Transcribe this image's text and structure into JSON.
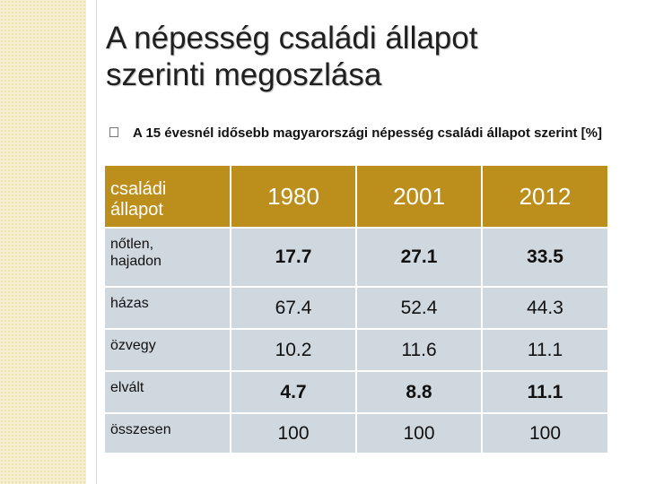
{
  "slide": {
    "title_line1": "A népesség családi állapot",
    "title_line2": "szerinti megoszlása",
    "bullet": "A 15 évesnél idősebb magyarországi népesség családi állapot szerint [%]"
  },
  "table": {
    "header": {
      "label_line1": "családi",
      "label_line2": "állapot",
      "years": [
        "1980",
        "2001",
        "2012"
      ]
    },
    "rows": [
      {
        "label_line1": "nőtlen,",
        "label_line2": "hajadon",
        "values": [
          "17.7",
          "27.1",
          "33.5"
        ],
        "bold": true
      },
      {
        "label_line1": "házas",
        "label_line2": "",
        "values": [
          "67.4",
          "52.4",
          "44.3"
        ],
        "bold": false
      },
      {
        "label_line1": "özvegy",
        "label_line2": "",
        "values": [
          "10.2",
          "11.6",
          "11.1"
        ],
        "bold": false
      },
      {
        "label_line1": "elvált",
        "label_line2": "",
        "values": [
          "4.7",
          "8.8",
          "11.1"
        ],
        "bold": true
      },
      {
        "label_line1": "összesen",
        "label_line2": "",
        "values": [
          "100",
          "100",
          "100"
        ],
        "bold": false
      }
    ]
  },
  "colors": {
    "header_bg": "#bc8f1c",
    "cell_bg": "#cfd7df",
    "side_band": "#f6efcf"
  }
}
